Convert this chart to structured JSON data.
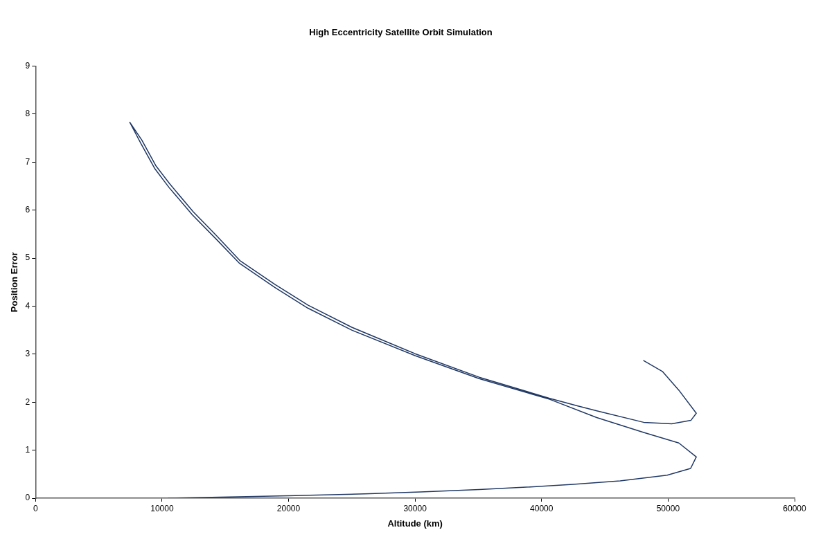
{
  "chart_data": {
    "type": "line",
    "title": "High Eccentricity Satellite Orbit Simulation",
    "xlabel": "Altitude (km)",
    "ylabel": "Position Error",
    "xlim": [
      0,
      60000
    ],
    "xticks": [
      0,
      10000,
      20000,
      30000,
      40000,
      50000,
      60000
    ],
    "ylim": [
      0,
      9
    ],
    "yticks": [
      0,
      1,
      2,
      3,
      4,
      5,
      6,
      7,
      8,
      9
    ],
    "grid": false,
    "legend": false,
    "marker": "none",
    "line_style": "solid",
    "series": [
      {
        "color": "#203864",
        "x": [
          10460,
          16030,
          19970,
          26020,
          30430,
          35070,
          38790,
          42500,
          46210,
          49930,
          51780,
          52230,
          50850,
          48070,
          44360,
          40640,
          35070,
          30000,
          25000,
          21520,
          18910,
          16130,
          14270,
          12410,
          10560,
          9440,
          8330,
          7450,
          8400,
          9500,
          10600,
          12450,
          14300,
          16150,
          18950,
          21550,
          25000,
          30000,
          35070,
          40640,
          42870,
          44360,
          48070,
          50290,
          51800,
          52230,
          50850,
          49550,
          48040
        ],
        "values": [
          0,
          0.03,
          0.05,
          0.09,
          0.13,
          0.18,
          0.23,
          0.29,
          0.36,
          0.48,
          0.62,
          0.86,
          1.15,
          1.37,
          1.68,
          2.06,
          2.49,
          2.97,
          3.5,
          3.96,
          4.39,
          4.89,
          5.4,
          5.9,
          6.47,
          6.86,
          7.39,
          7.83,
          7.46,
          6.93,
          6.55,
          5.97,
          5.47,
          4.95,
          4.45,
          4.02,
          3.56,
          3.01,
          2.52,
          2.08,
          1.92,
          1.82,
          1.58,
          1.55,
          1.62,
          1.77,
          2.25,
          2.64,
          2.87
        ]
      }
    ]
  }
}
